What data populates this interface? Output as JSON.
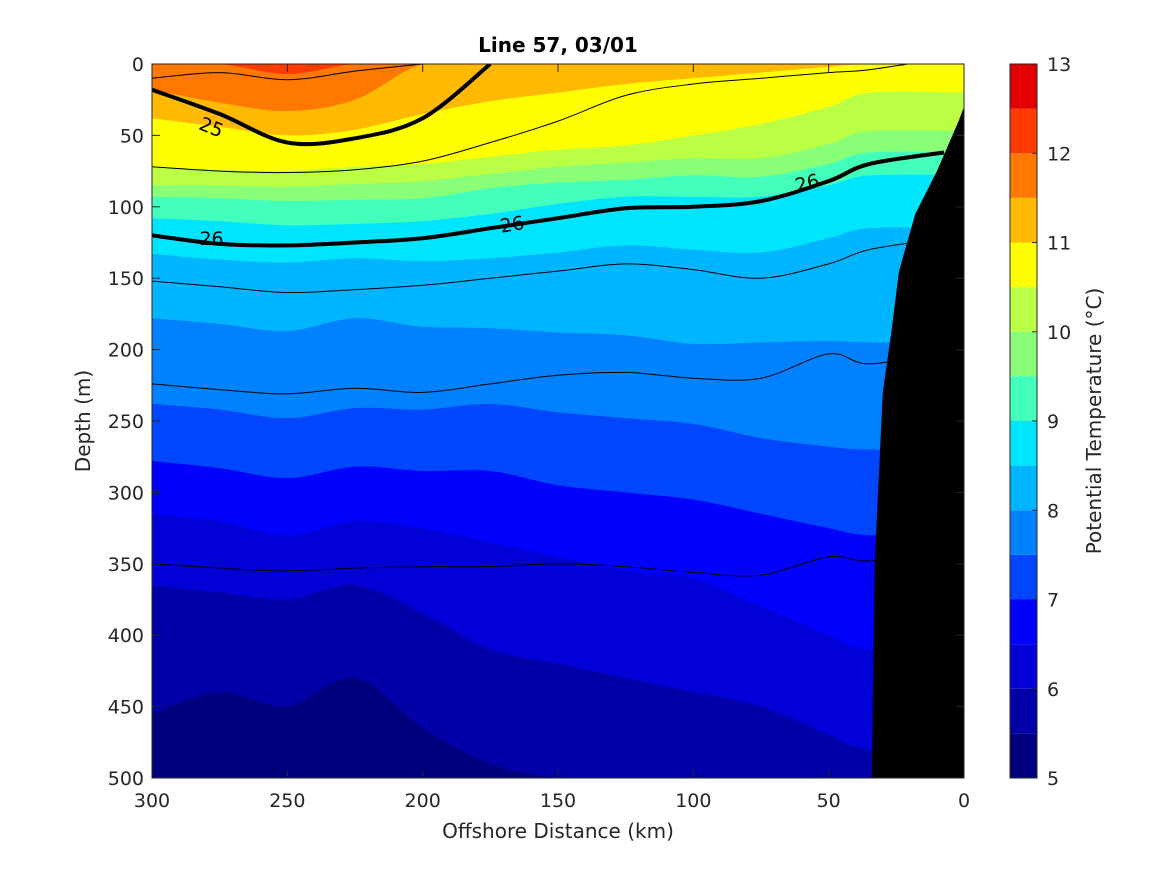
{
  "chart_data": {
    "type": "contour",
    "title": "Line 57, 03/01",
    "xlabel": "Offshore Distance (km)",
    "ylabel": "Depth (m)",
    "colorbar_label": "Potential Temperature (°C)",
    "xlim": [
      300,
      0
    ],
    "ylim": [
      0,
      500
    ],
    "x_ticks": [
      300,
      250,
      200,
      150,
      100,
      50,
      0
    ],
    "y_ticks": [
      0,
      50,
      100,
      150,
      200,
      250,
      300,
      350,
      400,
      450,
      500
    ],
    "colorbar_ticks": [
      5,
      6,
      7,
      8,
      9,
      10,
      11,
      12,
      13
    ],
    "colorbar_range": [
      5,
      13
    ],
    "fill_levels": [
      5,
      5.5,
      6,
      6.5,
      7,
      7.5,
      8,
      8.5,
      9,
      9.5,
      10,
      10.5,
      11,
      11.5,
      12,
      12.5,
      13
    ],
    "colormap": [
      "#00007f",
      "#0000a6",
      "#0000d7",
      "#0000ff",
      "#0046ff",
      "#0081ff",
      "#00b5ff",
      "#00e5ff",
      "#42ffbb",
      "#88ff77",
      "#bbff44",
      "#ffff00",
      "#ffb900",
      "#ff7800",
      "#ff3b00",
      "#e30000",
      "#aa0000"
    ],
    "x_stations": [
      300,
      275,
      250,
      225,
      200,
      175,
      150,
      125,
      100,
      75,
      50,
      35
    ],
    "isotherm_depths_m": [
      {
        "temp": 5.5,
        "depths": [
          455,
          440,
          450,
          430,
          465,
          490,
          500,
          500,
          500,
          500,
          500,
          500
        ]
      },
      {
        "temp": 6.0,
        "depths": [
          365,
          370,
          375,
          365,
          385,
          410,
          420,
          430,
          440,
          450,
          470,
          480
        ]
      },
      {
        "temp": 6.5,
        "depths": [
          315,
          320,
          330,
          320,
          325,
          335,
          345,
          355,
          360,
          380,
          400,
          410
        ]
      },
      {
        "temp": 7.0,
        "depths": [
          278,
          283,
          290,
          282,
          285,
          285,
          295,
          300,
          305,
          315,
          325,
          330
        ]
      },
      {
        "temp": 7.5,
        "depths": [
          238,
          242,
          248,
          241,
          242,
          238,
          244,
          248,
          252,
          262,
          268,
          270
        ]
      },
      {
        "temp": 8.0,
        "depths": [
          178,
          182,
          187,
          178,
          184,
          185,
          188,
          190,
          196,
          195,
          194,
          195
        ]
      },
      {
        "temp": 8.5,
        "depths": [
          133,
          137,
          139,
          136,
          138,
          136,
          132,
          127,
          130,
          132,
          122,
          115
        ]
      },
      {
        "temp": 9.0,
        "depths": [
          108,
          110,
          113,
          112,
          110,
          105,
          98,
          93,
          93,
          93,
          85,
          78
        ]
      },
      {
        "temp": 9.5,
        "depths": [
          93,
          94,
          96,
          95,
          94,
          87,
          83,
          81,
          78,
          79,
          70,
          62
        ]
      },
      {
        "temp": 10.0,
        "depths": [
          85,
          85,
          86,
          84,
          82,
          77,
          72,
          69,
          66,
          66,
          56,
          47
        ]
      },
      {
        "temp": 10.5,
        "depths": [
          72,
          74,
          75,
          72,
          70,
          65,
          60,
          57,
          50,
          42,
          30,
          20
        ]
      },
      {
        "temp": 11.0,
        "depths": [
          38,
          44,
          50,
          46,
          35,
          26,
          20,
          14,
          10,
          6,
          2,
          0
        ]
      },
      {
        "temp": 11.5,
        "depths": [
          18,
          27,
          33,
          25,
          0,
          0,
          0,
          0,
          0,
          0,
          0,
          0
        ]
      },
      {
        "temp": 12.0,
        "depths": [
          0,
          0,
          7,
          0,
          0,
          0,
          0,
          0,
          0,
          0,
          0,
          0
        ]
      }
    ],
    "density_contours": [
      {
        "value": 24.5,
        "label": "",
        "depths": [
          10,
          6,
          11,
          5,
          0,
          null,
          null,
          null,
          null,
          null,
          null,
          null
        ]
      },
      {
        "value": 25,
        "label": "25",
        "depths": [
          18,
          35,
          55,
          52,
          38,
          0,
          null,
          null,
          null,
          null,
          null,
          null
        ]
      },
      {
        "value": 25.5,
        "label": "",
        "depths": [
          72,
          75,
          76,
          74,
          68,
          55,
          40,
          22,
          14,
          10,
          6,
          4
        ]
      },
      {
        "value": 26,
        "label": "26",
        "depths": [
          120,
          126,
          127,
          125,
          122,
          115,
          108,
          101,
          100,
          96,
          82,
          70
        ]
      },
      {
        "value": 26.5,
        "label": "",
        "depths": [
          152,
          156,
          160,
          158,
          155,
          150,
          145,
          140,
          144,
          150,
          140,
          130
        ]
      },
      {
        "value": 27,
        "label": "",
        "depths": [
          224,
          228,
          231,
          227,
          230,
          224,
          218,
          216,
          220,
          220,
          203,
          210
        ]
      },
      {
        "value": 27.5,
        "label": "",
        "depths": [
          350,
          353,
          355,
          353,
          352,
          352,
          350,
          352,
          356,
          358,
          345,
          348
        ]
      }
    ],
    "contour_label_text": [
      "25",
      "26",
      "26",
      "26"
    ],
    "bathymetry_km_depth": [
      [
        34,
        500
      ],
      [
        33,
        350
      ],
      [
        30,
        230
      ],
      [
        27,
        190
      ],
      [
        24,
        145
      ],
      [
        18,
        105
      ],
      [
        10,
        75
      ],
      [
        2,
        40
      ],
      [
        0,
        30
      ],
      [
        0,
        500
      ]
    ]
  }
}
